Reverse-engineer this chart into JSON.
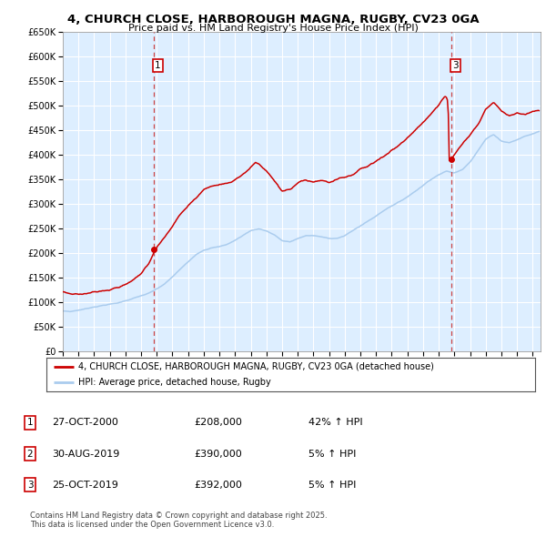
{
  "title": "4, CHURCH CLOSE, HARBOROUGH MAGNA, RUGBY, CV23 0GA",
  "subtitle": "Price paid vs. HM Land Registry's House Price Index (HPI)",
  "legend_line1": "4, CHURCH CLOSE, HARBOROUGH MAGNA, RUGBY, CV23 0GA (detached house)",
  "legend_line2": "HPI: Average price, detached house, Rugby",
  "table_rows": [
    {
      "num": "1",
      "date": "27-OCT-2000",
      "price": "£208,000",
      "hpi": "42% ↑ HPI"
    },
    {
      "num": "2",
      "date": "30-AUG-2019",
      "price": "£390,000",
      "hpi": "5% ↑ HPI"
    },
    {
      "num": "3",
      "date": "25-OCT-2019",
      "price": "£392,000",
      "hpi": "5% ↑ HPI"
    }
  ],
  "footnote": "Contains HM Land Registry data © Crown copyright and database right 2025.\nThis data is licensed under the Open Government Licence v3.0.",
  "red_line_color": "#cc0000",
  "blue_line_color": "#aaccee",
  "vline_color": "#cc4444",
  "plot_bg_color": "#ddeeff",
  "grid_color": "#ffffff",
  "ylim": [
    0,
    650000
  ],
  "xlim_start": 1995.0,
  "xlim_end": 2025.5,
  "sale1_x": 2000.82,
  "sale1_y": 208000,
  "sale2_x": 2019.66,
  "sale2_y": 390000,
  "sale3_x": 2019.82,
  "sale3_y": 392000
}
